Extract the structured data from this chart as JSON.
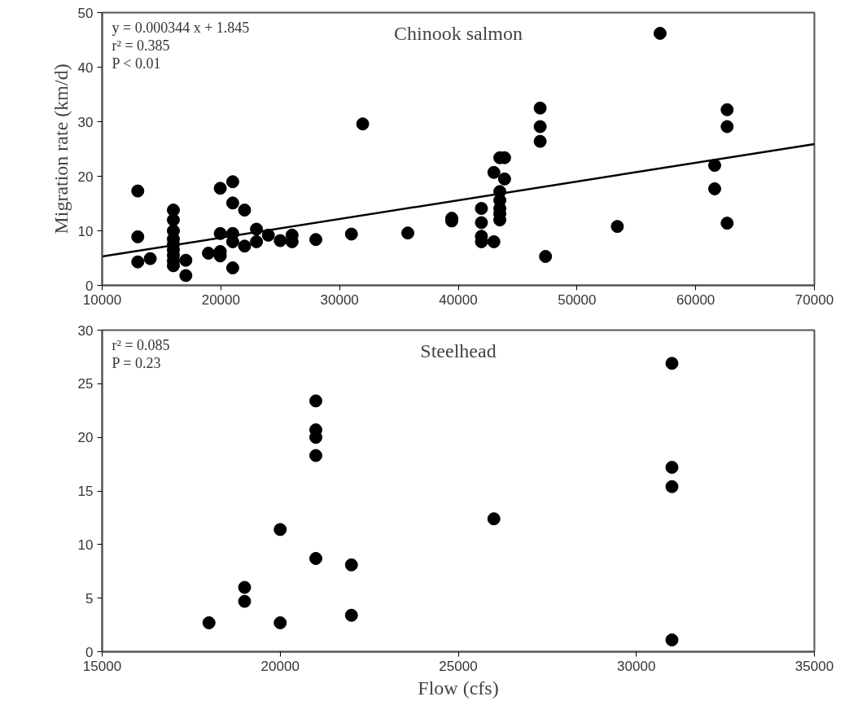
{
  "chart_data": [
    {
      "type": "scatter",
      "title": "Chinook salmon",
      "ylabel": "Migration rate (km/d)",
      "annotations": [
        "y = 0.000344 x + 1.845",
        "r² = 0.385",
        "P < 0.01"
      ],
      "xlim": [
        10000,
        70000
      ],
      "xticks": [
        10000,
        20000,
        30000,
        40000,
        50000,
        60000,
        70000
      ],
      "ylim": [
        0,
        50
      ],
      "yticks": [
        0,
        10,
        20,
        30,
        40,
        50
      ],
      "grid": false,
      "marker": "circle",
      "series": [
        {
          "color": "#000000",
          "x": [
            13000,
            13000,
            13000,
            14050,
            16000,
            16000,
            16000,
            16000,
            16000,
            16000,
            16000,
            16000,
            16000,
            17050,
            17050,
            18950,
            19950,
            19950,
            19950,
            19950,
            21000,
            21000,
            21000,
            21000,
            21000,
            22000,
            22000,
            23000,
            23000,
            24000,
            25000,
            26000,
            26000,
            28000,
            31000,
            31950,
            35750,
            39450,
            39450,
            41950,
            41950,
            41950,
            41950,
            43000,
            43000,
            43500,
            43900,
            43900,
            43500,
            43500,
            43500,
            43500,
            43500,
            46900,
            46900,
            46900,
            47350,
            53400,
            57000,
            62650,
            62650,
            61600,
            61600,
            62650
          ],
          "values": [
            17.3,
            8.9,
            4.3,
            4.9,
            13.8,
            12.0,
            10.0,
            8.5,
            7.5,
            6.5,
            5.5,
            4.5,
            3.6,
            4.6,
            1.8,
            5.9,
            17.8,
            9.5,
            6.2,
            5.4,
            19.0,
            15.1,
            9.5,
            8.0,
            3.2,
            13.8,
            7.2,
            10.3,
            8.0,
            9.2,
            8.2,
            9.2,
            8.0,
            8.4,
            9.4,
            29.6,
            9.6,
            12.3,
            11.8,
            14.1,
            11.5,
            9.0,
            8.0,
            8.0,
            20.7,
            23.4,
            23.4,
            19.5,
            17.2,
            15.6,
            14.1,
            13.1,
            12.0,
            32.5,
            29.1,
            26.4,
            5.3,
            10.8,
            46.2,
            32.2,
            29.1,
            22.0,
            17.7,
            11.4
          ]
        },
        {
          "type": "line",
          "color": "#000000",
          "line_style": "solid",
          "marker": "none",
          "x": [
            10000,
            70000
          ],
          "values": [
            5.3,
            25.9
          ]
        }
      ]
    },
    {
      "type": "scatter",
      "title": "Steelhead",
      "xlabel": "Flow (cfs)",
      "annotations": [
        "r² = 0.085",
        "P = 0.23"
      ],
      "xlim": [
        15000,
        35000
      ],
      "xticks": [
        15000,
        20000,
        25000,
        30000,
        35000
      ],
      "ylim": [
        0,
        30
      ],
      "yticks": [
        0,
        5,
        10,
        15,
        20,
        25,
        30
      ],
      "grid": false,
      "marker": "circle",
      "series": [
        {
          "color": "#000000",
          "x": [
            18000,
            19000,
            19000,
            20000,
            20000,
            21000,
            21000,
            21000,
            21000,
            21000,
            22000,
            22000,
            26000,
            31000,
            31000,
            31000,
            31000
          ],
          "values": [
            2.7,
            6.0,
            4.7,
            11.4,
            2.7,
            23.4,
            20.7,
            20.0,
            18.3,
            8.7,
            8.1,
            3.4,
            12.4,
            26.9,
            17.2,
            15.4,
            1.1
          ]
        }
      ]
    }
  ]
}
